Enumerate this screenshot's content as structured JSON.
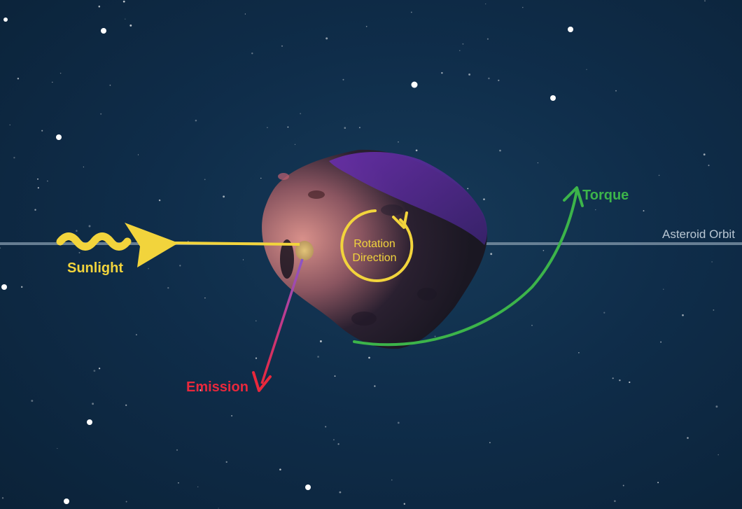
{
  "labels": {
    "sunlight": "Sunlight",
    "emission": "Emission",
    "torque": "Torque",
    "rotation_line1": "Rotation",
    "rotation_line2": "Direction",
    "orbit": "Asteroid Orbit"
  },
  "colors": {
    "sunlight": "#f2d43c",
    "emission": "#e8283c",
    "torque": "#3cb44a",
    "rotation": "#f2d43c",
    "orbit_line": "#7d93a6",
    "orbit_text": "#b8c6d3",
    "space": "#0f2d4a"
  },
  "icons": {
    "asteroid": "asteroid-icon",
    "sun_wave": "wavy-sunlight-arrow-icon",
    "rotation": "circular-rotation-arrow-icon"
  }
}
